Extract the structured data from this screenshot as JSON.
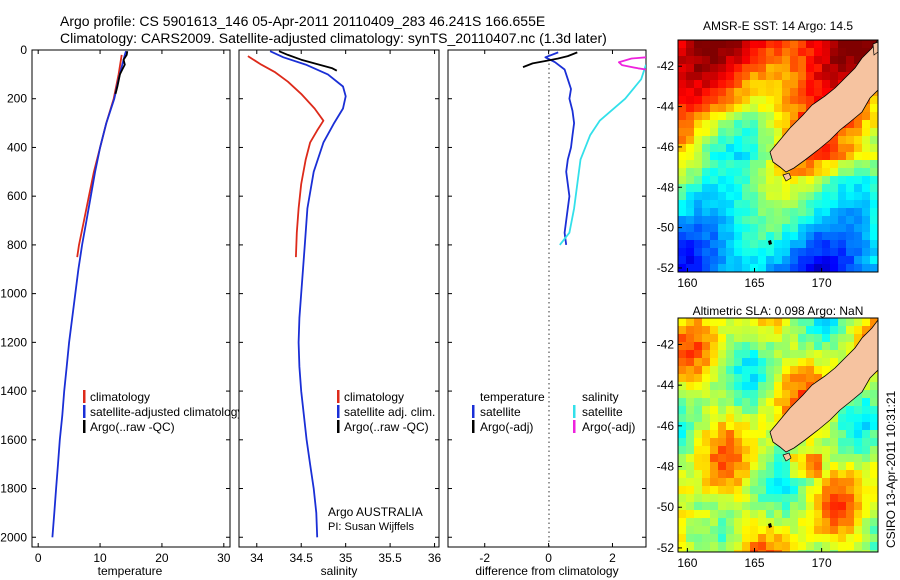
{
  "header": {
    "line1": "Argo profile: CS 5901613_146 05-Apr-2011 20110409_283 46.241S 166.655E",
    "line2": "Climatology: CARS2009. Satellite-adjusted climatology: synTS_20110407.nc (1.3d later)"
  },
  "credit": {
    "line1": "Argo AUSTRALIA",
    "line2": "PI: Susan Wijffels"
  },
  "side_stamp": "CSIRO 13-Apr-2011 10:31:21",
  "colors": {
    "climatology": "#dd2a1a",
    "satellite": "#1a2fd6",
    "argo": "#000000",
    "satellite_salinity": "#33e0ea",
    "argo_salinity_adj": "#ee22dd",
    "land": "#f6c3a0"
  },
  "chart_data": [
    {
      "type": "line",
      "xlabel": "temperature",
      "ylim": [
        2040,
        0
      ],
      "y_inverted": true,
      "xlim": [
        -1,
        31
      ],
      "xticks": [
        0,
        10,
        20,
        30
      ],
      "yticks": [
        0,
        200,
        400,
        600,
        800,
        1000,
        1200,
        1400,
        1600,
        1800,
        2000
      ],
      "grid": false,
      "legend_position": "bottom-right",
      "legend": [
        "climatology",
        "satellite-adjusted climatology",
        "Argo(..raw -QC)"
      ],
      "series": [
        {
          "name": "climatology",
          "color_key": "climatology",
          "points": [
            [
              13.5,
              20
            ],
            [
              13.0,
              100
            ],
            [
              12.2,
              200
            ],
            [
              11.0,
              300
            ],
            [
              10.0,
              400
            ],
            [
              9.0,
              500
            ],
            [
              8.2,
              600
            ],
            [
              7.4,
              700
            ],
            [
              6.6,
              800
            ],
            [
              6.3,
              850
            ]
          ]
        },
        {
          "name": "satellite-adjusted climatology",
          "color_key": "satellite",
          "points": [
            [
              14.2,
              5
            ],
            [
              14.0,
              20
            ],
            [
              13.6,
              60
            ],
            [
              13.0,
              120
            ],
            [
              12.3,
              200
            ],
            [
              11.0,
              300
            ],
            [
              10.0,
              400
            ],
            [
              9.2,
              500
            ],
            [
              8.5,
              600
            ],
            [
              7.8,
              700
            ],
            [
              7.1,
              800
            ],
            [
              6.5,
              900
            ],
            [
              6.0,
              1000
            ],
            [
              5.5,
              1100
            ],
            [
              5.0,
              1200
            ],
            [
              4.6,
              1300
            ],
            [
              4.2,
              1400
            ],
            [
              3.9,
              1500
            ],
            [
              3.5,
              1600
            ],
            [
              3.2,
              1700
            ],
            [
              2.9,
              1800
            ],
            [
              2.6,
              1900
            ],
            [
              2.3,
              2000
            ]
          ]
        },
        {
          "name": "Argo(..raw -QC)",
          "color_key": "argo",
          "points": [
            [
              14.4,
              5
            ],
            [
              14.3,
              20
            ],
            [
              13.8,
              40
            ],
            [
              14.0,
              60
            ],
            [
              13.6,
              80
            ],
            [
              13.2,
              100
            ],
            [
              12.8,
              150
            ],
            [
              12.5,
              180
            ]
          ]
        }
      ]
    },
    {
      "type": "line",
      "xlabel": "salinity",
      "ylim": [
        2040,
        0
      ],
      "y_inverted": true,
      "xlim": [
        33.8,
        36.05
      ],
      "xticks": [
        34,
        34.5,
        35,
        35.5,
        36
      ],
      "xtick_labels": [
        "34",
        "34.5",
        "35",
        "35.5",
        "36"
      ],
      "grid": false,
      "legend_position": "bottom-right",
      "legend": [
        "climatology",
        "satellite adj. clim.",
        "Argo(..raw -QC)"
      ],
      "series": [
        {
          "name": "climatology",
          "color_key": "climatology",
          "points": [
            [
              33.9,
              25
            ],
            [
              34.05,
              60
            ],
            [
              34.2,
              90
            ],
            [
              34.35,
              130
            ],
            [
              34.5,
              180
            ],
            [
              34.65,
              240
            ],
            [
              34.75,
              290
            ],
            [
              34.68,
              330
            ],
            [
              34.6,
              380
            ],
            [
              34.55,
              450
            ],
            [
              34.5,
              550
            ],
            [
              34.47,
              650
            ],
            [
              34.45,
              750
            ],
            [
              34.44,
              850
            ]
          ]
        },
        {
          "name": "satellite adj. clim.",
          "color_key": "satellite",
          "points": [
            [
              34.15,
              5
            ],
            [
              34.3,
              30
            ],
            [
              34.55,
              60
            ],
            [
              34.8,
              100
            ],
            [
              34.97,
              150
            ],
            [
              35.0,
              190
            ],
            [
              34.97,
              240
            ],
            [
              34.87,
              300
            ],
            [
              34.75,
              380
            ],
            [
              34.64,
              500
            ],
            [
              34.57,
              650
            ],
            [
              34.54,
              800
            ],
            [
              34.52,
              900
            ],
            [
              34.5,
              1000
            ],
            [
              34.48,
              1100
            ],
            [
              34.47,
              1200
            ],
            [
              34.48,
              1300
            ],
            [
              34.5,
              1400
            ],
            [
              34.53,
              1500
            ],
            [
              34.56,
              1600
            ],
            [
              34.6,
              1700
            ],
            [
              34.64,
              1800
            ],
            [
              34.67,
              1900
            ],
            [
              34.68,
              2000
            ]
          ]
        },
        {
          "name": "Argo(..raw -QC)",
          "color_key": "argo",
          "points": [
            [
              34.25,
              5
            ],
            [
              34.35,
              20
            ],
            [
              34.5,
              40
            ],
            [
              34.7,
              60
            ],
            [
              34.85,
              75
            ],
            [
              34.9,
              85
            ]
          ]
        }
      ]
    },
    {
      "type": "line",
      "xlabel": "difference from climatology",
      "ylim": [
        2040,
        0
      ],
      "y_inverted": true,
      "xlim": [
        -3.15,
        3.05
      ],
      "xticks": [
        -2,
        0,
        2
      ],
      "zero_line": "dotted",
      "grid": false,
      "legend_position": "bottom",
      "legend_groups": [
        {
          "title": "temperature",
          "entries": [
            {
              "label": "satellite",
              "color_key": "satellite"
            },
            {
              "label": "Argo(-adj)",
              "color_key": "argo"
            }
          ]
        },
        {
          "title": "salinity",
          "entries": [
            {
              "label": "satellite",
              "color_key": "satellite_salinity"
            },
            {
              "label": "Argo(-adj)",
              "color_key": "argo_salinity_adj"
            }
          ]
        }
      ],
      "series": [
        {
          "name": "temperature satellite",
          "color_key": "satellite",
          "points": [
            [
              0.3,
              10
            ],
            [
              -0.1,
              30
            ],
            [
              0.2,
              50
            ],
            [
              0.5,
              80
            ],
            [
              0.6,
              120
            ],
            [
              0.7,
              160
            ],
            [
              0.65,
              200
            ],
            [
              0.75,
              250
            ],
            [
              0.8,
              300
            ],
            [
              0.75,
              350
            ],
            [
              0.7,
              400
            ],
            [
              0.6,
              450
            ],
            [
              0.55,
              500
            ],
            [
              0.6,
              550
            ],
            [
              0.65,
              600
            ],
            [
              0.6,
              650
            ],
            [
              0.55,
              700
            ],
            [
              0.5,
              750
            ],
            [
              0.55,
              800
            ]
          ]
        },
        {
          "name": "temperature Argo(-adj)",
          "color_key": "argo",
          "points": [
            [
              0.9,
              10
            ],
            [
              0.6,
              25
            ],
            [
              0.3,
              35
            ],
            [
              -0.1,
              45
            ],
            [
              -0.5,
              55
            ],
            [
              -0.8,
              70
            ]
          ]
        },
        {
          "name": "salinity satellite",
          "color_key": "satellite_salinity",
          "points": [
            [
              3.05,
              60
            ],
            [
              2.9,
              120
            ],
            [
              2.4,
              200
            ],
            [
              1.6,
              290
            ],
            [
              1.3,
              350
            ],
            [
              1.0,
              450
            ],
            [
              0.9,
              550
            ],
            [
              0.8,
              650
            ],
            [
              0.65,
              750
            ],
            [
              0.35,
              800
            ]
          ]
        },
        {
          "name": "salinity Argo(-adj)",
          "color_key": "argo_salinity_adj",
          "points": [
            [
              3.05,
              30
            ],
            [
              2.6,
              35
            ],
            [
              2.2,
              50
            ],
            [
              2.3,
              62
            ],
            [
              2.8,
              75
            ],
            [
              3.05,
              80
            ]
          ]
        }
      ]
    },
    {
      "type": "heatmap",
      "title": "AMSR-E SST: 14 Argo: 14.5",
      "xlim": [
        159.3,
        174.2
      ],
      "ylim": [
        -52.2,
        -40.7
      ],
      "xticks": [
        160,
        165,
        170
      ],
      "yticks": [
        -42,
        -44,
        -46,
        -48,
        -50,
        -52
      ],
      "argo_marker": [
        166.655,
        -46.241
      ]
    },
    {
      "type": "heatmap",
      "title": "Altimetric SLA: 0.098 Argo: NaN",
      "xlim": [
        159.3,
        174.2
      ],
      "ylim": [
        -52.2,
        -40.7
      ],
      "xticks": [
        160,
        165,
        170
      ],
      "yticks": [
        -42,
        -44,
        -46,
        -48,
        -50,
        -52
      ],
      "argo_marker": [
        166.655,
        -46.241
      ]
    }
  ]
}
